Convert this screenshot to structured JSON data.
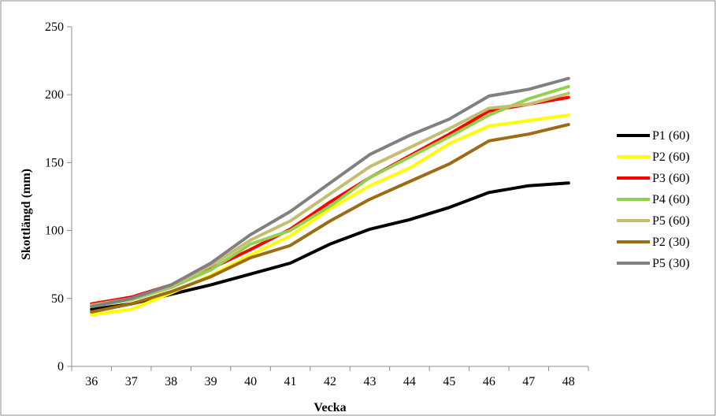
{
  "chart_data": {
    "type": "line",
    "title": "",
    "xlabel": "Vecka",
    "ylabel": "Skottlängd (mm)",
    "ylim": [
      0,
      250
    ],
    "yticks": [
      0,
      50,
      100,
      150,
      200,
      250
    ],
    "categories": [
      "36",
      "37",
      "38",
      "39",
      "40",
      "41",
      "42",
      "43",
      "44",
      "45",
      "46",
      "47",
      "48"
    ],
    "grid": false,
    "legend_position": "right",
    "series": [
      {
        "name": "P1 (60)",
        "color": "#000000",
        "values": [
          42,
          46,
          53,
          60,
          68,
          76,
          90,
          101,
          108,
          117,
          128,
          133,
          135
        ]
      },
      {
        "name": "P2 (60)",
        "color": "#ffff00",
        "values": [
          38,
          42,
          54,
          67,
          82,
          96,
          116,
          133,
          146,
          164,
          177,
          181,
          185
        ]
      },
      {
        "name": "P3 (60)",
        "color": "#ff0000",
        "values": [
          46,
          51,
          60,
          72,
          86,
          101,
          121,
          139,
          155,
          171,
          188,
          193,
          198
        ]
      },
      {
        "name": "P4 (60)",
        "color": "#92d050",
        "values": [
          44,
          49,
          58,
          71,
          90,
          100,
          118,
          139,
          154,
          169,
          185,
          197,
          206
        ]
      },
      {
        "name": "P5 (60)",
        "color": "#c4bd6f",
        "values": [
          45,
          50,
          59,
          74,
          93,
          107,
          127,
          147,
          161,
          175,
          190,
          193,
          201
        ]
      },
      {
        "name": "P2 (30)",
        "color": "#9c6b13",
        "values": [
          40,
          46,
          55,
          66,
          80,
          89,
          107,
          123,
          136,
          149,
          166,
          171,
          178
        ]
      },
      {
        "name": "P5 (30)",
        "color": "#808080",
        "values": [
          44,
          50,
          60,
          76,
          97,
          114,
          135,
          156,
          170,
          182,
          199,
          204,
          212
        ]
      }
    ]
  }
}
